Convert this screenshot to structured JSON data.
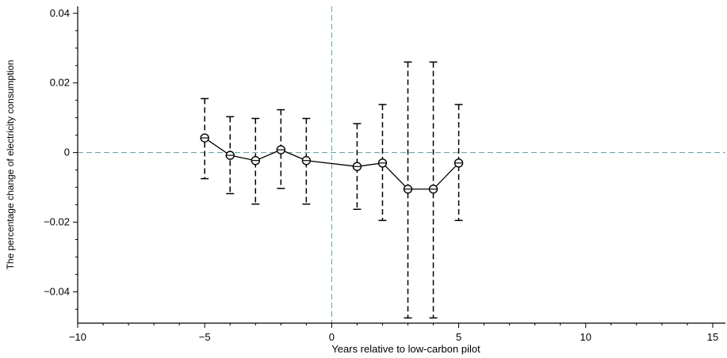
{
  "chart_data": {
    "type": "scatter",
    "title": "",
    "xlabel": "Years relative to low-carbon pilot",
    "ylabel": "The percentage change of electricity consumption",
    "xlim": [
      -10,
      15.5
    ],
    "ylim": [
      -0.049,
      0.042
    ],
    "x_ticks": [
      -10,
      -5,
      0,
      5,
      10,
      15
    ],
    "x_tick_labels": [
      "−10",
      "−5",
      "0",
      "5",
      "10",
      "15"
    ],
    "y_ticks": [
      0.04,
      0.02,
      0,
      -0.02,
      -0.04
    ],
    "y_tick_labels": [
      "0.04",
      "0.02",
      "0",
      "−0.02",
      "−0.04"
    ],
    "reference_lines": {
      "x": 0,
      "y": 0,
      "color": "#5f9ea0"
    },
    "series": [
      {
        "x": [
          -5,
          -4,
          -3,
          -2,
          -1,
          1,
          2,
          3,
          4,
          5
        ],
        "y": [
          0.0042,
          -0.0008,
          -0.0023,
          0.0008,
          -0.0023,
          -0.004,
          -0.003,
          -0.0105,
          -0.0105,
          -0.003
        ],
        "ci_lower": [
          -0.0075,
          -0.0118,
          -0.0148,
          -0.0103,
          -0.0148,
          -0.0163,
          -0.0195,
          -0.0475,
          -0.0475,
          -0.0195
        ],
        "ci_upper": [
          0.0155,
          0.0103,
          0.0098,
          0.0123,
          0.0098,
          0.0083,
          0.0138,
          0.026,
          0.026,
          0.0138
        ]
      }
    ]
  }
}
